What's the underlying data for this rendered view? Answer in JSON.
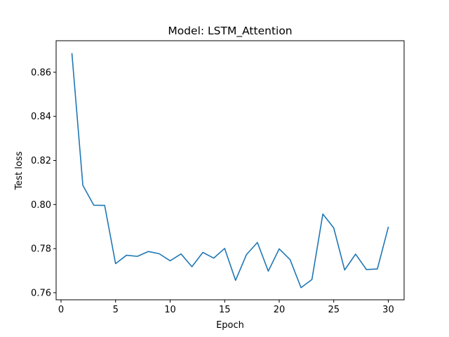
{
  "chart_data": {
    "type": "line",
    "title": "Model: LSTM_Attention",
    "xlabel": "Epoch",
    "ylabel": "Test loss",
    "xlim": [
      -0.45,
      31.45
    ],
    "ylim": [
      0.7568,
      0.8743
    ],
    "xticks": [
      0,
      5,
      10,
      15,
      20,
      25,
      30
    ],
    "yticks": [
      0.76,
      0.78,
      0.8,
      0.82,
      0.84,
      0.86
    ],
    "ytick_labels": [
      "0.76",
      "0.78",
      "0.80",
      "0.82",
      "0.84",
      "0.86"
    ],
    "grid": false,
    "series": [
      {
        "color": "#1f77b4",
        "x": [
          1,
          2,
          3,
          4,
          5,
          6,
          7,
          8,
          9,
          10,
          11,
          12,
          13,
          14,
          15,
          16,
          17,
          18,
          19,
          20,
          21,
          22,
          23,
          24,
          25,
          26,
          27,
          28,
          29,
          30
        ],
        "y": [
          0.8684,
          0.8087,
          0.7997,
          0.7996,
          0.7732,
          0.777,
          0.7765,
          0.7787,
          0.7777,
          0.7745,
          0.7776,
          0.7718,
          0.7783,
          0.7757,
          0.7801,
          0.7656,
          0.7773,
          0.7828,
          0.7698,
          0.7799,
          0.775,
          0.7623,
          0.766,
          0.7957,
          0.7894,
          0.7703,
          0.7775,
          0.7705,
          0.7708,
          0.7897
        ]
      }
    ]
  }
}
